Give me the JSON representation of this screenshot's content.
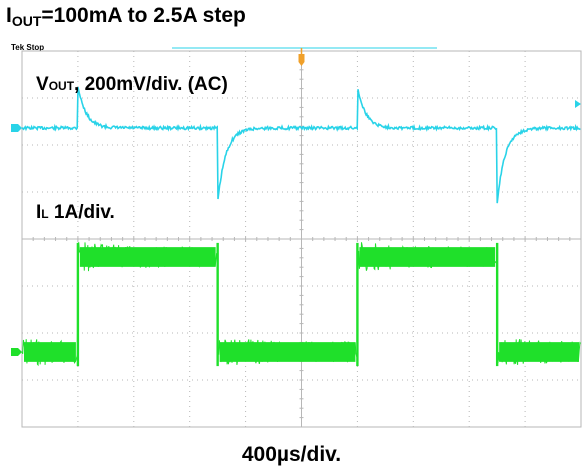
{
  "header": {
    "title_main": "I",
    "title_sub": "OUT",
    "title_rest": "=100mA to 2.5A step"
  },
  "scope": {
    "status": "Tek Stop",
    "colors": {
      "ch1": "#29d3e8",
      "ch2": "#1fe02a",
      "grid": "#b7b7b7",
      "trigger": "#f0a02a"
    }
  },
  "chart_data": {
    "type": "line",
    "xlabel": "400µs/div.",
    "grid": true,
    "divisions": {
      "x": 10,
      "y": 8
    },
    "load_step": {
      "low_A": 0.1,
      "high_A": 2.5,
      "period_us": 2000,
      "duty": 0.5
    },
    "series": [
      {
        "label_main": "V",
        "label_sub": "OUT",
        "label_rest": ", 200mV/div. (AC)",
        "color": "#29d3e8",
        "rising_edge_div": [
          1.0,
          6.0
        ],
        "falling_edge_div": [
          3.5,
          8.5
        ],
        "overshoot_mV": 180,
        "undershoot_mV": 320
      },
      {
        "label_main": "I",
        "label_sub": "L",
        "label_rest": " 1A/div.",
        "color": "#1fe02a",
        "high_A": 2.5,
        "low_A": 0.1,
        "ripple_A": 0.5
      }
    ]
  }
}
